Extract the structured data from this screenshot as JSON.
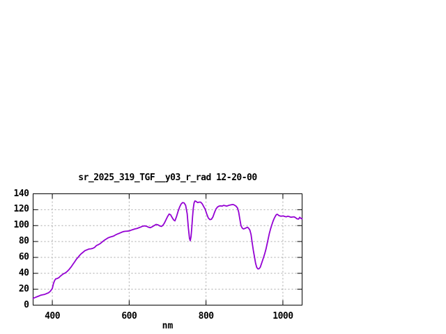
{
  "title": "sr_2025_319_TGF__y03_r_rad 12-20-00",
  "colors": {
    "background": "#ffffff",
    "axis": "#000000",
    "grid": "#a8a8a8",
    "line": "#9400d3",
    "text": "#000000"
  },
  "chart_data": {
    "type": "line",
    "title": "sr_2025_319_TGF__y03_r_rad 12-20-00",
    "xlabel": "nm",
    "ylabel": "",
    "xlim": [
      350,
      1050
    ],
    "ylim": [
      0,
      140
    ],
    "x_ticks": [
      "400",
      "600",
      "800",
      "1000"
    ],
    "x_tick_values": [
      400,
      600,
      800,
      1000
    ],
    "y_ticks": [
      "0",
      "20",
      "40",
      "60",
      "80",
      "100",
      "120",
      "140"
    ],
    "y_tick_values": [
      0,
      20,
      40,
      60,
      80,
      100,
      120,
      140
    ],
    "grid": "dashed",
    "legend_position": "none",
    "series": [
      {
        "name": "sr_2025_319_TGF__y03_r_rad",
        "color": "#9400d3",
        "x": [
          350,
          355,
          360,
          365,
          370,
          375,
          380,
          385,
          390,
          395,
          400,
          403,
          406,
          409,
          413,
          417,
          421,
          425,
          429,
          434,
          439,
          444,
          449,
          454,
          459,
          463,
          467,
          471,
          475,
          480,
          485,
          490,
          495,
          500,
          505,
          510,
          515,
          520,
          525,
          530,
          535,
          540,
          545,
          550,
          555,
          560,
          565,
          570,
          575,
          580,
          585,
          590,
          595,
          600,
          605,
          610,
          615,
          620,
          625,
          630,
          635,
          640,
          645,
          650,
          655,
          660,
          665,
          670,
          675,
          680,
          684,
          688,
          692,
          696,
          700,
          704,
          708,
          712,
          716,
          719,
          723,
          727,
          731,
          735,
          739,
          743,
          747,
          751,
          754,
          757,
          759,
          761,
          763,
          765,
          767,
          769,
          771,
          774,
          778,
          782,
          786,
          790,
          794,
          798,
          802,
          806,
          810,
          814,
          818,
          822,
          826,
          830,
          834,
          838,
          842,
          846,
          850,
          854,
          858,
          862,
          866,
          870,
          874,
          878,
          882,
          885,
          888,
          891,
          894,
          897,
          900,
          904,
          908,
          911,
          914,
          917,
          920,
          923,
          926,
          929,
          932,
          935,
          938,
          941,
          944,
          947,
          950,
          953,
          956,
          959,
          962,
          965,
          968,
          971,
          974,
          977,
          980,
          983,
          986,
          989,
          992,
          995,
          998,
          1001,
          1005,
          1009,
          1013,
          1017,
          1021,
          1025,
          1029,
          1033,
          1037,
          1041,
          1044,
          1047,
          1050
        ],
        "y": [
          8.5,
          9.5,
          10.5,
          11.5,
          12.5,
          13,
          13.5,
          14.5,
          15.5,
          17.5,
          21,
          27,
          31,
          33,
          33.5,
          34.5,
          36.5,
          38,
          39.5,
          40.5,
          42.5,
          45,
          48,
          51.5,
          55,
          58,
          60,
          62.5,
          64.5,
          66.5,
          68.5,
          69.5,
          70.5,
          70.8,
          71.3,
          72.5,
          75,
          76,
          77.5,
          79.5,
          81.5,
          83,
          84.5,
          85.5,
          86.2,
          87,
          88.5,
          89.5,
          90.5,
          91.5,
          92.5,
          92.8,
          93,
          93.3,
          94.2,
          95,
          95.8,
          96.3,
          97.2,
          98.2,
          99.2,
          99.7,
          99.2,
          98,
          97.4,
          98.5,
          100,
          101.5,
          101,
          99.5,
          99,
          100.5,
          103.5,
          107.5,
          111.5,
          114.5,
          113.5,
          110,
          107,
          106,
          111,
          117.5,
          123,
          127,
          129,
          128.5,
          125.5,
          115,
          97,
          84,
          81,
          86,
          97,
          111,
          122,
          128.5,
          131,
          130.5,
          129,
          129.5,
          129.5,
          127.5,
          124,
          120.5,
          114.5,
          109.5,
          107.5,
          108,
          111,
          116.5,
          121,
          123.5,
          124.5,
          124.8,
          124.5,
          125.5,
          125,
          124.5,
          125.2,
          125.8,
          126.2,
          126.5,
          125.8,
          124.5,
          122,
          117,
          108,
          100,
          97,
          95.8,
          96.2,
          97,
          98,
          96.5,
          94.5,
          89,
          79,
          69,
          61,
          52.5,
          47.5,
          45.5,
          45.8,
          47.5,
          51.5,
          56,
          60.5,
          65,
          70.5,
          77,
          84,
          90.5,
          96,
          100.5,
          105,
          108.5,
          111.5,
          113.8,
          114.2,
          112.8,
          112.2,
          111.8,
          112,
          112.2,
          111.5,
          111,
          111.8,
          111.2,
          110.5,
          110.8,
          111,
          110,
          108.5,
          108.2,
          110.5,
          109,
          108.5
        ]
      }
    ]
  }
}
